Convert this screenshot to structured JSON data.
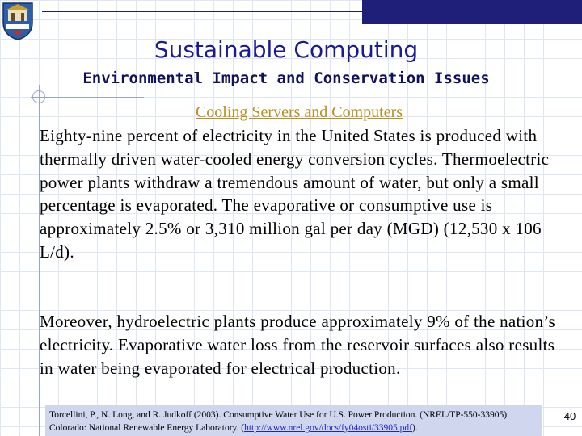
{
  "slide": {
    "title": "Sustainable Computing",
    "subtitle": "Environmental Impact and Conservation Issues",
    "section_heading": "Cooling Servers and Computers",
    "paragraphs": [
      "Eighty-nine percent of electricity in the United States is produced with thermally driven water-cooled energy conversion cycles. Thermoelectric power plants withdraw a tremendous amount of water, but only a small percentage is evaporated. The evaporative or consumptive use is approximately 2.5% or 3,310 million gal per day (MGD) (12,530 x 106 L/d).",
      "Moreover, hydroelectric plants produce approximately 9% of the nation’s electricity. Evaporative water loss from the reservoir surfaces also results in water being evaporated for electrical production."
    ],
    "citation": {
      "line1": "Torcellini, P., N. Long, and R. Judkoff (2003). Consumptive Water Use for U.S. Power Production. (NREL/TP-550-33905).",
      "line2_prefix": "Colorado: National Renewable Energy Laboratory. (",
      "link": "http://www.nrel.gov/docs/fy04osti/33905.pdf",
      "line2_suffix": ")."
    },
    "page_number": "40"
  },
  "colors": {
    "title": "#1a1a99",
    "section_heading": "#b8901a",
    "top_bar": "#1f1f7a",
    "citation_box": "#cfd6ee"
  },
  "icons": {
    "logo": "university-crest-icon"
  }
}
